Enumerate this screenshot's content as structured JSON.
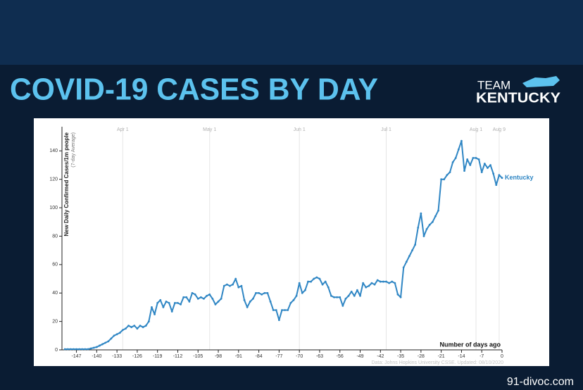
{
  "slide": {
    "title": "COVID-19 CASES BY DAY",
    "logo_top": "TEAM",
    "logo_bottom": "KENTUCKY",
    "footer": "91-divoc.com"
  },
  "chart_data": {
    "type": "line",
    "y_label": "New Daily Confirmed Cases/1m people",
    "y_sublabel": "(7-day Average)",
    "x_label": "Number of days ago",
    "source": "Data: Johns Hopkins University CSSE. Updated: 08/10/2020",
    "xlim": [
      -152,
      0
    ],
    "ylim": [
      0,
      157
    ],
    "xticks": [
      -147,
      -140,
      -133,
      -126,
      -119,
      -112,
      -105,
      -98,
      -91,
      -84,
      -77,
      -70,
      -63,
      -56,
      -49,
      -42,
      -35,
      -28,
      -21,
      -14,
      -7,
      0
    ],
    "yticks": [
      0,
      20,
      40,
      60,
      80,
      100,
      120,
      140
    ],
    "top_ticks": [
      {
        "value": -131,
        "label": "Apr 1"
      },
      {
        "value": -101,
        "label": "May 1"
      },
      {
        "value": -70,
        "label": "Jun 1"
      },
      {
        "value": -40,
        "label": "Jul 1"
      },
      {
        "value": -9,
        "label": "Aug 1"
      },
      {
        "value": -1,
        "label": "Aug 9"
      }
    ],
    "grid": true,
    "x": [
      -151,
      -150,
      -149,
      -148,
      -147,
      -146,
      -145,
      -144,
      -143,
      -142,
      -141,
      -140,
      -139,
      -138,
      -137,
      -136,
      -135,
      -134,
      -133,
      -132,
      -131,
      -130,
      -129,
      -128,
      -127,
      -126,
      -125,
      -124,
      -123,
      -122,
      -121,
      -120,
      -119,
      -118,
      -117,
      -116,
      -115,
      -114,
      -113,
      -112,
      -111,
      -110,
      -109,
      -108,
      -107,
      -106,
      -105,
      -104,
      -103,
      -102,
      -101,
      -100,
      -99,
      -98,
      -97,
      -96,
      -95,
      -94,
      -93,
      -92,
      -91,
      -90,
      -89,
      -88,
      -87,
      -86,
      -85,
      -84,
      -83,
      -82,
      -81,
      -80,
      -79,
      -78,
      -77,
      -76,
      -75,
      -74,
      -73,
      -72,
      -71,
      -70,
      -69,
      -68,
      -67,
      -66,
      -65,
      -64,
      -63,
      -62,
      -61,
      -60,
      -59,
      -58,
      -57,
      -56,
      -55,
      -54,
      -53,
      -52,
      -51,
      -50,
      -49,
      -48,
      -47,
      -46,
      -45,
      -44,
      -43,
      -42,
      -41,
      -40,
      -39,
      -38,
      -37,
      -36,
      -35,
      -34,
      -33,
      -32,
      -31,
      -30,
      -29,
      -28,
      -27,
      -26,
      -25,
      -24,
      -23,
      -22,
      -21,
      -20,
      -19,
      -18,
      -17,
      -16,
      -15,
      -14,
      -13,
      -12,
      -11,
      -10,
      -9,
      -8,
      -7,
      -6,
      -5,
      -4,
      -3,
      -2,
      -1,
      0
    ],
    "series": [
      {
        "name": "Kentucky",
        "color": "#2f86c4",
        "values": [
          0.5,
          0.5,
          0.5,
          0.5,
          0.5,
          0.5,
          0.5,
          0.5,
          0.5,
          1,
          1.5,
          2,
          3,
          4,
          5,
          6,
          8,
          10,
          11,
          12,
          14,
          15,
          17,
          16,
          17,
          15,
          17,
          16,
          17,
          20,
          30,
          25,
          33,
          35,
          30,
          34,
          33,
          27,
          33,
          33,
          32,
          37,
          37,
          34,
          40,
          39,
          36,
          37,
          36,
          38,
          39,
          36,
          32,
          34,
          36,
          45,
          46,
          45,
          46,
          50,
          44,
          45,
          35,
          30,
          34,
          36,
          40,
          40,
          39,
          40,
          40,
          34,
          28,
          28,
          21,
          28,
          28,
          28,
          33,
          35,
          38,
          47,
          40,
          42,
          48,
          48,
          50,
          51,
          50,
          46,
          48,
          44,
          38,
          37,
          37,
          37,
          31,
          36,
          38,
          41,
          38,
          42,
          38,
          47,
          44,
          45,
          47,
          46,
          49,
          48,
          48,
          48,
          47,
          48,
          47,
          39,
          37,
          58,
          62,
          66,
          70,
          74,
          86,
          96,
          80,
          85,
          88,
          90,
          94,
          98,
          120,
          120,
          123,
          125,
          132,
          135,
          141,
          147,
          126,
          134,
          130,
          135,
          135,
          134,
          125,
          131,
          128,
          130,
          124,
          116,
          123,
          121
        ]
      }
    ]
  }
}
